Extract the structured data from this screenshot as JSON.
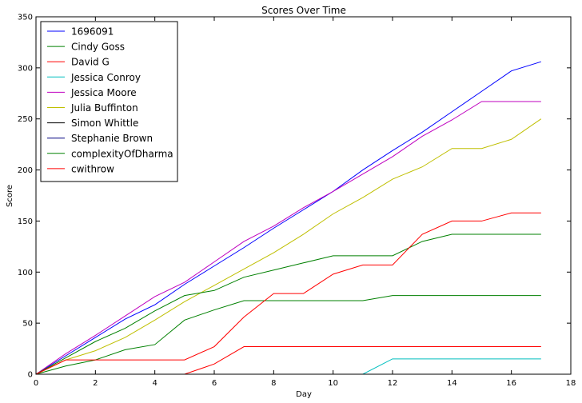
{
  "chart_data": {
    "type": "line",
    "title": "Scores Over Time",
    "xlabel": "Day",
    "ylabel": "Score",
    "xlim": [
      0,
      18
    ],
    "ylim": [
      0,
      350
    ],
    "xticks": [
      "0",
      "2",
      "4",
      "6",
      "8",
      "10",
      "12",
      "14",
      "16",
      "18"
    ],
    "yticks": [
      "0",
      "50",
      "100",
      "150",
      "200",
      "250",
      "300",
      "350"
    ],
    "grid": false,
    "legend_position": "top-left",
    "x": [
      0,
      1,
      2,
      3,
      4,
      5,
      6,
      7,
      8,
      9,
      10,
      11,
      12,
      13,
      14,
      15,
      16,
      17
    ],
    "series": [
      {
        "name": "1696091",
        "color": "#0000ff",
        "values": [
          0,
          18,
          36,
          54,
          68,
          88,
          106,
          124,
          143,
          161,
          179,
          200,
          219,
          237,
          257,
          277,
          297,
          306
        ]
      },
      {
        "name": "Cindy Goss",
        "color": "#008000",
        "values": [
          0,
          8,
          14,
          24,
          29,
          53,
          63,
          72,
          72,
          72,
          72,
          72,
          77,
          77,
          77,
          77,
          77,
          77
        ]
      },
      {
        "name": "David G",
        "color": "#ff0000",
        "values": [
          0,
          0,
          0,
          0,
          0,
          0,
          10,
          27,
          27,
          27,
          27,
          27,
          27,
          27,
          27,
          27,
          27,
          27
        ]
      },
      {
        "name": "Jessica Conroy",
        "color": "#00bfbf",
        "values": [
          0,
          0,
          0,
          0,
          0,
          0,
          0,
          0,
          0,
          0,
          0,
          0,
          15,
          15,
          15,
          15,
          15,
          15
        ]
      },
      {
        "name": "Jessica Moore",
        "color": "#bf00bf",
        "values": [
          0,
          20,
          38,
          57,
          76,
          90,
          110,
          130,
          145,
          163,
          179,
          196,
          213,
          233,
          249,
          267,
          267,
          267
        ]
      },
      {
        "name": "Julia Buffinton",
        "color": "#bfbf00",
        "values": [
          0,
          14,
          23,
          36,
          53,
          71,
          87,
          103,
          119,
          137,
          157,
          173,
          191,
          203,
          221,
          221,
          230,
          250
        ]
      },
      {
        "name": "Simon Whittle",
        "color": "#000000",
        "values": [
          0,
          0,
          0,
          0,
          0,
          0,
          0,
          0,
          0,
          0,
          0,
          0,
          0,
          0,
          0,
          0,
          0,
          0
        ]
      },
      {
        "name": "Stephanie Brown",
        "color": "#000080",
        "values": [
          0,
          0,
          0,
          0,
          0,
          0,
          0,
          0,
          0,
          0,
          0,
          0,
          0,
          0,
          0,
          0,
          0,
          0
        ]
      },
      {
        "name": "complexityOfDharma",
        "color": "#008000",
        "values": [
          0,
          16,
          32,
          45,
          62,
          77,
          82,
          95,
          102,
          109,
          116,
          116,
          116,
          130,
          137,
          137,
          137,
          137
        ]
      },
      {
        "name": "cwithrow",
        "color": "#ff0000",
        "values": [
          0,
          14,
          14,
          14,
          14,
          14,
          27,
          56,
          79,
          79,
          98,
          107,
          107,
          137,
          150,
          150,
          158,
          158
        ]
      }
    ]
  }
}
